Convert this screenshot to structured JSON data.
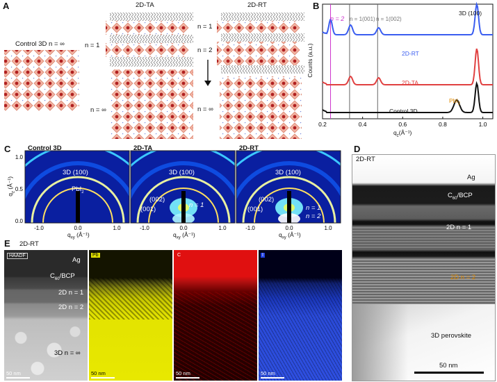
{
  "panels": {
    "A": {
      "label": "A",
      "control_title": "Control 3D n = ∞",
      "ta_title": "2D-TA",
      "rt_title": "2D-RT",
      "ta_n1": "n = 1",
      "ta_ninf": "n = ∞",
      "rt_n1": "n = 1",
      "rt_n2": "n = 2",
      "rt_ninf": "n = ∞"
    },
    "B": {
      "label": "B",
      "n2_marker": "n = 2",
      "n1_marker": "n = 1(001)",
      "n1_marker2": "n = 1(002)",
      "peak_3d": "3D (100)",
      "pbi2_label": "PbI",
      "pbi2_sub": "2",
      "ylabel": "Counts (a.u.)",
      "xlabel_main": "q",
      "xlabel_sub": "z",
      "xlabel_unit": "(Å⁻¹)"
    },
    "C": {
      "label": "C",
      "titles": [
        "Control 3D",
        "2D-TA",
        "2D-RT"
      ],
      "ring_label": "3D (100)",
      "pbi2": "PbI",
      "pbi2_sub": "2",
      "l002": "(002)",
      "l001": "(001)",
      "n1": "n = 1",
      "n2": "n = 2",
      "xlabel": "q",
      "xlabel_sub": "xy",
      "xlabel_unit": "(Å⁻¹)",
      "ylabel": "q",
      "ylabel_sub": "z",
      "ylabel_unit": "(Å⁻¹)",
      "xticks": [
        "-1.0",
        "0.0",
        "1.0"
      ],
      "yticks": [
        "1.0",
        "0.5",
        "0.0"
      ]
    },
    "D": {
      "label": "D",
      "title": "2D-RT",
      "ag": "Ag",
      "c60": "C",
      "c60_sub": "60",
      "c60_rest": "/BCP",
      "n1": "2D n = 1",
      "n2": "2D n = 2",
      "bulk": "3D perovskite",
      "scale": "50 nm"
    },
    "E": {
      "label": "E",
      "title": "2D-RT",
      "haadf": "HAADF",
      "ag": "Ag",
      "c60": "C",
      "c60_sub": "60",
      "c60_rest": "/BCP",
      "n1": "2D n = 1",
      "n2": "2D n = 2",
      "n_inf": "3D n = ∞",
      "scale": "50 nm",
      "maps": [
        "Pb",
        "C",
        "I"
      ]
    }
  },
  "chart_data": {
    "type": "line",
    "xlabel": "qz (Å⁻¹)",
    "ylabel": "Counts (a.u.)",
    "xlim": [
      0.2,
      1.05
    ],
    "xticks": [
      0.2,
      0.4,
      0.6,
      0.8,
      1.0
    ],
    "series": [
      {
        "name": "2D-RT",
        "color": "#3a5df0",
        "peaks": [
          0.24,
          0.34,
          0.48,
          0.97
        ]
      },
      {
        "name": "2D-TA",
        "color": "#e04040",
        "peaks": [
          0.34,
          0.48,
          0.97
        ]
      },
      {
        "name": "Control 3D",
        "color": "#111111",
        "peaks": [
          0.87,
          0.97
        ]
      }
    ],
    "reference_lines": [
      0.24,
      0.335,
      0.475
    ]
  },
  "colors": {
    "rt": "#3a5df0",
    "ta": "#e04040",
    "control": "#111111",
    "n2_line": "#cc33cc",
    "pbi2": "#e08a00",
    "octahedron": "#f2b3a2",
    "pb": "#b02020"
  }
}
